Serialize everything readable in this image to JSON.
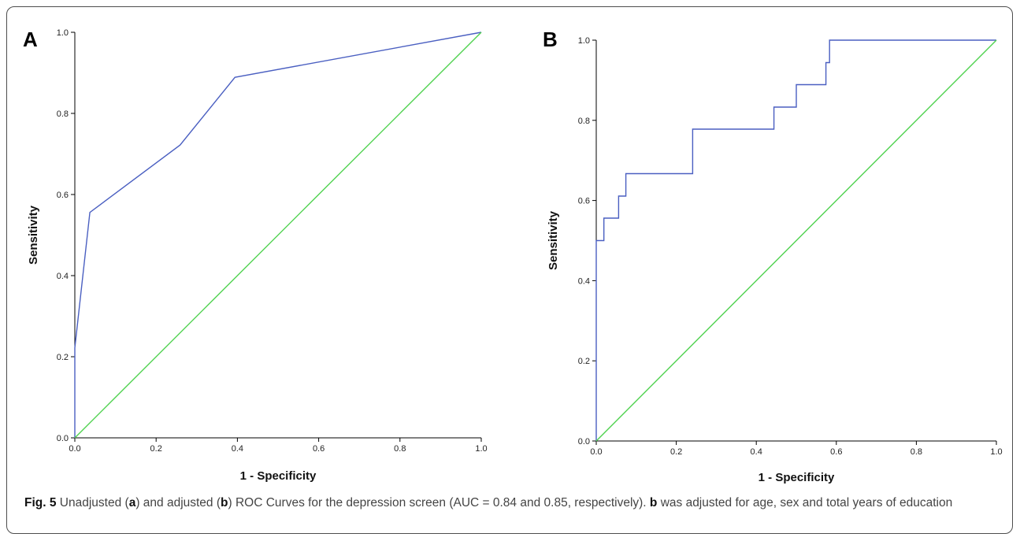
{
  "panels": {
    "a": {
      "letter": "A"
    },
    "b": {
      "letter": "B"
    }
  },
  "caption": {
    "fig_label": "Fig. 5",
    "t1": " Unadjusted (",
    "a_ref": "a",
    "t2": ") and adjusted (",
    "b_ref": "b",
    "t3": ") ROC Curves for the depression screen (AUC = 0.84 and 0.85, respectively). ",
    "b_ref2": "b",
    "t4": " was adjusted for age, sex and total years of education"
  },
  "colors": {
    "roc_curve": "#4a5fc1",
    "reference_line": "#4fd24f",
    "axis": "#000000"
  },
  "chart_data": [
    {
      "type": "line",
      "panel": "A",
      "xlabel": "1 - Specificity",
      "ylabel": "Sensitivity",
      "xlim": [
        0,
        1
      ],
      "ylim": [
        0,
        1
      ],
      "xticks": [
        "0.0",
        "0.2",
        "0.4",
        "0.6",
        "0.8",
        "1.0"
      ],
      "yticks": [
        "0.0",
        "0.2",
        "0.4",
        "0.6",
        "0.8",
        "1.0"
      ],
      "grid": false,
      "series": [
        {
          "role": "roc",
          "x": [
            0,
            0,
            0.037,
            0.259,
            0.394,
            1.0
          ],
          "y": [
            0,
            0.222,
            0.556,
            0.722,
            0.889,
            1.0
          ]
        },
        {
          "role": "reference",
          "x": [
            0,
            1
          ],
          "y": [
            0,
            1
          ]
        }
      ]
    },
    {
      "type": "line",
      "panel": "B",
      "xlabel": "1 - Specificity",
      "ylabel": "Sensitivity",
      "xlim": [
        0,
        1
      ],
      "ylim": [
        0,
        1
      ],
      "xticks": [
        "0.0",
        "0.2",
        "0.4",
        "0.6",
        "0.8",
        "1.0"
      ],
      "yticks": [
        "0.0",
        "0.2",
        "0.4",
        "0.6",
        "0.8",
        "1.0"
      ],
      "grid": false,
      "series": [
        {
          "role": "roc",
          "x": [
            0,
            0,
            0.019,
            0.019,
            0.056,
            0.056,
            0.074,
            0.074,
            0.241,
            0.241,
            0.444,
            0.444,
            0.5,
            0.5,
            0.574,
            0.574,
            0.583,
            0.583,
            1.0
          ],
          "y": [
            0,
            0.5,
            0.5,
            0.556,
            0.556,
            0.611,
            0.611,
            0.667,
            0.667,
            0.778,
            0.778,
            0.833,
            0.833,
            0.889,
            0.889,
            0.944,
            0.944,
            1.0,
            1.0
          ]
        },
        {
          "role": "reference",
          "x": [
            0,
            1
          ],
          "y": [
            0,
            1
          ]
        }
      ]
    }
  ]
}
